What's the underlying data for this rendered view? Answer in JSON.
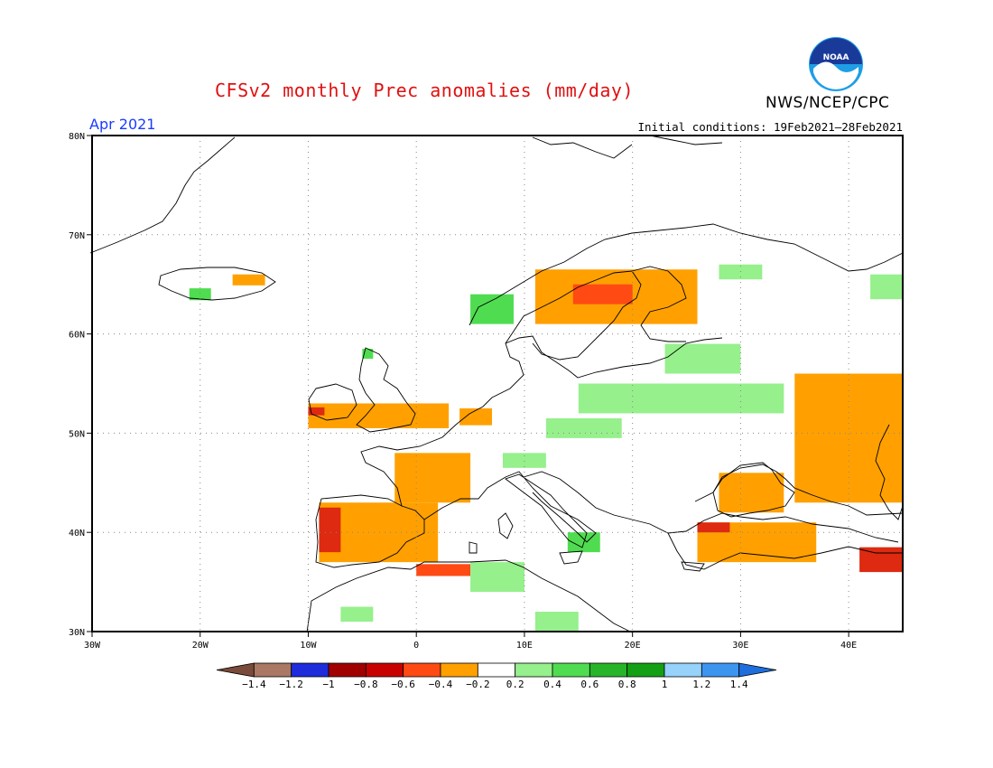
{
  "header": {
    "title": "CFSv2 monthly Prec anomalies (mm/day)",
    "agency": "NWS/NCEP/CPC",
    "period": "Apr 2021",
    "initial_conditions": "Initial conditions: 19Feb2021–28Feb2021",
    "logo_text": "NOAA"
  },
  "map": {
    "lon_range": [
      -30,
      45
    ],
    "lat_range": [
      30,
      80
    ],
    "lat_ticks": [
      {
        "value": 80,
        "label": "80N"
      },
      {
        "value": 70,
        "label": "70N"
      },
      {
        "value": 60,
        "label": "60N"
      },
      {
        "value": 50,
        "label": "50N"
      },
      {
        "value": 40,
        "label": "40N"
      },
      {
        "value": 30,
        "label": "30N"
      }
    ],
    "lon_ticks": [
      {
        "value": -30,
        "label": "30W"
      },
      {
        "value": -20,
        "label": "20W"
      },
      {
        "value": -10,
        "label": "10W"
      },
      {
        "value": 0,
        "label": "0"
      },
      {
        "value": 10,
        "label": "10E"
      },
      {
        "value": 20,
        "label": "20E"
      },
      {
        "value": 30,
        "label": "30E"
      },
      {
        "value": 40,
        "label": "40E"
      }
    ],
    "grid": true,
    "colors": {
      "dry_strong": "#dd2a10",
      "dry_moderate": "#ff4a14",
      "dry_weak": "#ffa000",
      "wet_weak": "#96f08c",
      "wet_moderate": "#50dc50"
    },
    "anomaly_regions": [
      {
        "name": "scandinavia",
        "value": -0.3,
        "lon": [
          11,
          26
        ],
        "lat": [
          61,
          66.5
        ]
      },
      {
        "name": "scandinavia-core",
        "value": -0.5,
        "lon": [
          14.5,
          20
        ],
        "lat": [
          63,
          65
        ]
      },
      {
        "name": "iceland-east",
        "value": -0.3,
        "lon": [
          -17,
          -14
        ],
        "lat": [
          64.9,
          66
        ]
      },
      {
        "name": "iceland-west",
        "value": 0.4,
        "lon": [
          -21,
          -19
        ],
        "lat": [
          63.4,
          64.6
        ]
      },
      {
        "name": "norway-coast",
        "value": 0.4,
        "lon": [
          5,
          9
        ],
        "lat": [
          61,
          64
        ]
      },
      {
        "name": "scotland-north",
        "value": 0.4,
        "lon": [
          -5,
          -4
        ],
        "lat": [
          57.5,
          58.5
        ]
      },
      {
        "name": "northern-russia",
        "value": 0.3,
        "lon": [
          28,
          32
        ],
        "lat": [
          65.5,
          67
        ]
      },
      {
        "name": "russia-ne",
        "value": 0.3,
        "lon": [
          42,
          45
        ],
        "lat": [
          63.5,
          66
        ]
      },
      {
        "name": "baltic",
        "value": 0.3,
        "lon": [
          23,
          30
        ],
        "lat": [
          56,
          59
        ]
      },
      {
        "name": "poland-belarus",
        "value": 0.3,
        "lon": [
          15,
          34
        ],
        "lat": [
          52,
          55
        ]
      },
      {
        "name": "germany-east",
        "value": 0.3,
        "lon": [
          12,
          19
        ],
        "lat": [
          49.5,
          51.5
        ]
      },
      {
        "name": "ireland-uk",
        "value": -0.3,
        "lon": [
          -10,
          3
        ],
        "lat": [
          50.5,
          53
        ]
      },
      {
        "name": "ireland-sw",
        "value": -0.6,
        "lon": [
          -10,
          -8.5
        ],
        "lat": [
          51.8,
          52.6
        ]
      },
      {
        "name": "benelux",
        "value": -0.3,
        "lon": [
          4,
          7
        ],
        "lat": [
          50.8,
          52.5
        ]
      },
      {
        "name": "france",
        "value": -0.3,
        "lon": [
          -2,
          5
        ],
        "lat": [
          43,
          48
        ]
      },
      {
        "name": "iberia",
        "value": -0.3,
        "lon": [
          -9,
          2
        ],
        "lat": [
          37,
          43
        ]
      },
      {
        "name": "iberia-west",
        "value": -0.7,
        "lon": [
          -9,
          -7
        ],
        "lat": [
          38,
          42.5
        ]
      },
      {
        "name": "north-africa",
        "value": -0.5,
        "lon": [
          0,
          5
        ],
        "lat": [
          35.6,
          36.8
        ]
      },
      {
        "name": "algeria-tunisia",
        "value": 0.3,
        "lon": [
          5,
          10
        ],
        "lat": [
          34,
          37
        ]
      },
      {
        "name": "libya",
        "value": 0.3,
        "lon": [
          11,
          15
        ],
        "lat": [
          30,
          32
        ]
      },
      {
        "name": "morocco",
        "value": 0.3,
        "lon": [
          -7,
          -4
        ],
        "lat": [
          31,
          32.5
        ]
      },
      {
        "name": "black-sea",
        "value": -0.3,
        "lon": [
          28,
          34
        ],
        "lat": [
          42,
          46
        ]
      },
      {
        "name": "turkey",
        "value": -0.3,
        "lon": [
          26,
          37
        ],
        "lat": [
          37,
          41
        ]
      },
      {
        "name": "turkey-nw",
        "value": -0.6,
        "lon": [
          26,
          29
        ],
        "lat": [
          40,
          41
        ]
      },
      {
        "name": "russia-south",
        "value": -0.3,
        "lon": [
          35,
          45
        ],
        "lat": [
          43,
          56
        ]
      },
      {
        "name": "caucasus",
        "value": -0.6,
        "lon": [
          41,
          45
        ],
        "lat": [
          36,
          38.5
        ]
      },
      {
        "name": "alps",
        "value": 0.3,
        "lon": [
          8,
          12
        ],
        "lat": [
          46.5,
          48
        ]
      },
      {
        "name": "italy-south",
        "value": 0.4,
        "lon": [
          14,
          17
        ],
        "lat": [
          38,
          40
        ]
      }
    ]
  },
  "colorbar": {
    "labels": [
      "−1.4",
      "−1.2",
      "−1",
      "−0.8",
      "−0.6",
      "−0.4",
      "−0.2",
      "0.2",
      "0.4",
      "0.6",
      "0.8",
      "1",
      "1.2",
      "1.4"
    ],
    "colors": [
      "#7a4a3a",
      "#aa7864",
      "#1e2cdc",
      "#a00000",
      "#c80000",
      "#ff4a14",
      "#ffa000",
      "#ffffff",
      "#96f08c",
      "#50dc50",
      "#28b428",
      "#14a014",
      "#96d2fa",
      "#3c96f0",
      "#1e6edc"
    ]
  }
}
